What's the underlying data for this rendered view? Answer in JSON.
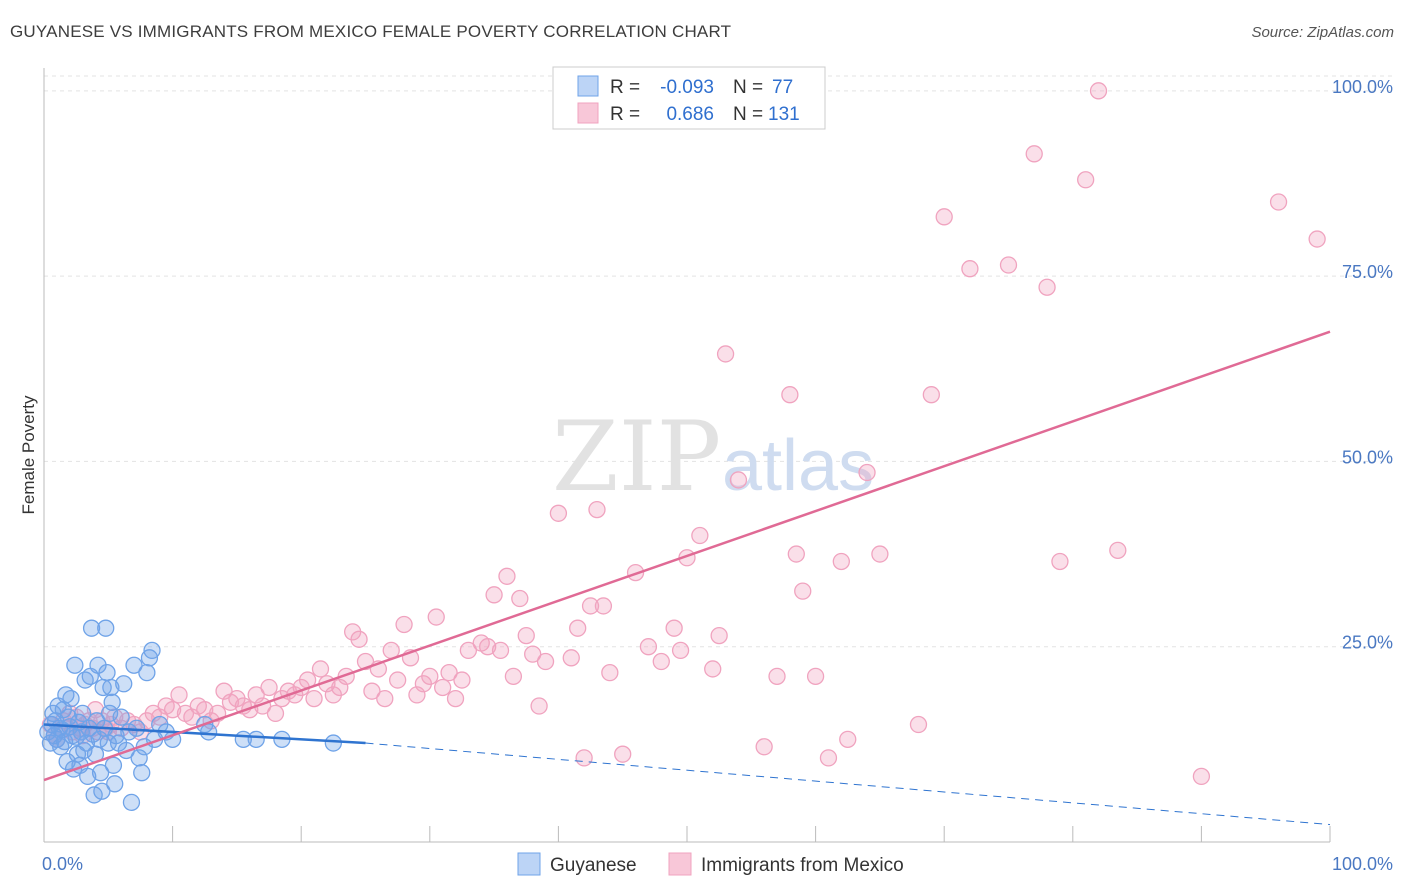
{
  "title": "GUYANESE VS IMMIGRANTS FROM MEXICO FEMALE POVERTY CORRELATION CHART",
  "source": "Source: ZipAtlas.com",
  "watermark": {
    "zip": "ZIP",
    "atlas": "atlas"
  },
  "chart_data": {
    "type": "scatter",
    "xlabel": "",
    "ylabel": "Female Poverty",
    "xlim": [
      0,
      100
    ],
    "ylim": [
      0,
      102
    ],
    "x_tick_labels": [
      {
        "value": 0,
        "label": "0.0%"
      },
      {
        "value": 100,
        "label": "100.0%"
      }
    ],
    "y_tick_labels": [
      {
        "value": 25,
        "label": "25.0%"
      },
      {
        "value": 50,
        "label": "50.0%"
      },
      {
        "value": 75,
        "label": "75.0%"
      },
      {
        "value": 100,
        "label": "100.0%"
      }
    ],
    "legend": {
      "placement": "top-center",
      "entries": [
        {
          "r_label": "R =",
          "r_value": "-0.093",
          "n_label": "N =",
          "n_value": "77"
        },
        {
          "r_label": "R =",
          "r_value": "0.686",
          "n_label": "N =",
          "n_value": "131"
        }
      ]
    },
    "bottom_legend": [
      "Guyanese",
      "Immigrants from Mexico"
    ],
    "series": [
      {
        "name": "Guyanese",
        "color": "#6fa3e8",
        "line_color": "#2f74d0",
        "trend": {
          "x0": 0,
          "y0": 14.5,
          "x1": 25,
          "y1": 12.0,
          "dash_to_x": 100,
          "dash_to_y": 1.0
        },
        "points": [
          [
            0.3,
            13.5
          ],
          [
            0.5,
            12.0
          ],
          [
            0.6,
            14.5
          ],
          [
            0.7,
            16.0
          ],
          [
            0.8,
            13.0
          ],
          [
            0.9,
            15.0
          ],
          [
            1.0,
            12.5
          ],
          [
            1.1,
            17.0
          ],
          [
            1.2,
            14.0
          ],
          [
            1.3,
            11.5
          ],
          [
            1.4,
            13.8
          ],
          [
            1.5,
            16.5
          ],
          [
            1.6,
            12.2
          ],
          [
            1.7,
            18.5
          ],
          [
            1.8,
            9.5
          ],
          [
            1.9,
            15.5
          ],
          [
            2.0,
            14.2
          ],
          [
            2.1,
            18.0
          ],
          [
            2.2,
            13.0
          ],
          [
            2.3,
            8.5
          ],
          [
            2.4,
            22.5
          ],
          [
            2.5,
            12.8
          ],
          [
            2.6,
            10.5
          ],
          [
            2.7,
            14.8
          ],
          [
            2.8,
            9.0
          ],
          [
            2.9,
            13.5
          ],
          [
            3.0,
            16.0
          ],
          [
            3.1,
            11.0
          ],
          [
            3.2,
            20.5
          ],
          [
            3.3,
            12.0
          ],
          [
            3.4,
            7.5
          ],
          [
            3.5,
            14.0
          ],
          [
            3.6,
            21.0
          ],
          [
            3.7,
            27.5
          ],
          [
            3.8,
            13.2
          ],
          [
            3.9,
            5.0
          ],
          [
            4.0,
            10.5
          ],
          [
            4.1,
            15.0
          ],
          [
            4.2,
            22.5
          ],
          [
            4.3,
            12.5
          ],
          [
            4.4,
            8.0
          ],
          [
            4.5,
            5.5
          ],
          [
            4.6,
            19.5
          ],
          [
            4.7,
            14.0
          ],
          [
            4.8,
            27.5
          ],
          [
            4.9,
            21.5
          ],
          [
            5.0,
            12.0
          ],
          [
            5.1,
            16.0
          ],
          [
            5.2,
            19.5
          ],
          [
            5.3,
            17.5
          ],
          [
            5.4,
            9.0
          ],
          [
            5.5,
            6.5
          ],
          [
            5.6,
            13.0
          ],
          [
            5.8,
            12.0
          ],
          [
            6.0,
            15.5
          ],
          [
            6.2,
            20.0
          ],
          [
            6.4,
            11.0
          ],
          [
            6.6,
            13.5
          ],
          [
            6.8,
            4.0
          ],
          [
            7.0,
            22.5
          ],
          [
            7.2,
            14.0
          ],
          [
            7.4,
            10.0
          ],
          [
            7.6,
            8.0
          ],
          [
            7.8,
            11.5
          ],
          [
            8.0,
            21.5
          ],
          [
            8.2,
            23.5
          ],
          [
            8.4,
            24.5
          ],
          [
            8.6,
            12.5
          ],
          [
            9.0,
            14.5
          ],
          [
            9.5,
            13.5
          ],
          [
            10.0,
            12.5
          ],
          [
            12.5,
            14.5
          ],
          [
            12.8,
            13.5
          ],
          [
            15.5,
            12.5
          ],
          [
            16.5,
            12.5
          ],
          [
            18.5,
            12.5
          ],
          [
            22.5,
            12.0
          ]
        ]
      },
      {
        "name": "Immigrants from Mexico",
        "color": "#f0a3bf",
        "line_color": "#e06a95",
        "trend": {
          "x0": 0,
          "y0": 7.0,
          "x1": 100,
          "y1": 67.5
        },
        "points": [
          [
            0.5,
            14.5
          ],
          [
            0.8,
            13.0
          ],
          [
            1.0,
            12.5
          ],
          [
            1.5,
            15.0
          ],
          [
            1.8,
            14.0
          ],
          [
            2.0,
            16.0
          ],
          [
            2.2,
            13.5
          ],
          [
            2.5,
            15.5
          ],
          [
            2.8,
            14.0
          ],
          [
            3.0,
            13.0
          ],
          [
            3.2,
            14.5
          ],
          [
            3.5,
            15.0
          ],
          [
            3.8,
            14.0
          ],
          [
            4.0,
            16.5
          ],
          [
            4.2,
            13.5
          ],
          [
            4.5,
            15.0
          ],
          [
            4.8,
            14.0
          ],
          [
            5.0,
            13.5
          ],
          [
            5.2,
            14.5
          ],
          [
            5.5,
            15.5
          ],
          [
            6.0,
            14.0
          ],
          [
            6.5,
            15.0
          ],
          [
            7.0,
            14.5
          ],
          [
            7.5,
            13.5
          ],
          [
            8.0,
            15.0
          ],
          [
            8.5,
            16.0
          ],
          [
            9.0,
            15.5
          ],
          [
            9.5,
            17.0
          ],
          [
            10.0,
            16.5
          ],
          [
            10.5,
            18.5
          ],
          [
            11.0,
            16.0
          ],
          [
            11.5,
            15.5
          ],
          [
            12.0,
            17.0
          ],
          [
            12.5,
            16.5
          ],
          [
            13.0,
            15.0
          ],
          [
            13.5,
            16.0
          ],
          [
            14.0,
            19.0
          ],
          [
            14.5,
            17.5
          ],
          [
            15.0,
            18.0
          ],
          [
            15.5,
            17.0
          ],
          [
            16.0,
            16.5
          ],
          [
            16.5,
            18.5
          ],
          [
            17.0,
            17.0
          ],
          [
            17.5,
            19.5
          ],
          [
            18.0,
            16.0
          ],
          [
            18.5,
            18.0
          ],
          [
            19.0,
            19.0
          ],
          [
            19.5,
            18.5
          ],
          [
            20.0,
            19.5
          ],
          [
            20.5,
            20.5
          ],
          [
            21.0,
            18.0
          ],
          [
            21.5,
            22.0
          ],
          [
            22.0,
            20.0
          ],
          [
            22.5,
            18.5
          ],
          [
            23.0,
            19.5
          ],
          [
            23.5,
            21.0
          ],
          [
            24.0,
            27.0
          ],
          [
            24.5,
            26.0
          ],
          [
            25.0,
            23.0
          ],
          [
            25.5,
            19.0
          ],
          [
            26.0,
            22.0
          ],
          [
            26.5,
            18.0
          ],
          [
            27.0,
            24.5
          ],
          [
            27.5,
            20.5
          ],
          [
            28.0,
            28.0
          ],
          [
            28.5,
            23.5
          ],
          [
            29.0,
            18.5
          ],
          [
            29.5,
            20.0
          ],
          [
            30.0,
            21.0
          ],
          [
            30.5,
            29.0
          ],
          [
            31.0,
            19.5
          ],
          [
            31.5,
            21.5
          ],
          [
            32.0,
            18.0
          ],
          [
            32.5,
            20.5
          ],
          [
            33.0,
            24.5
          ],
          [
            34.0,
            25.5
          ],
          [
            34.5,
            25.0
          ],
          [
            35.0,
            32.0
          ],
          [
            35.5,
            24.5
          ],
          [
            36.0,
            34.5
          ],
          [
            36.5,
            21.0
          ],
          [
            37.0,
            31.5
          ],
          [
            37.5,
            26.5
          ],
          [
            38.0,
            24.0
          ],
          [
            38.5,
            17.0
          ],
          [
            39.0,
            23.0
          ],
          [
            40.0,
            43.0
          ],
          [
            41.0,
            23.5
          ],
          [
            41.5,
            27.5
          ],
          [
            42.0,
            10.0
          ],
          [
            42.5,
            30.5
          ],
          [
            43.0,
            43.5
          ],
          [
            43.5,
            30.5
          ],
          [
            44.0,
            21.5
          ],
          [
            45.0,
            10.5
          ],
          [
            46.0,
            35.0
          ],
          [
            47.0,
            25.0
          ],
          [
            48.0,
            23.0
          ],
          [
            49.0,
            27.5
          ],
          [
            49.5,
            24.5
          ],
          [
            50.0,
            37.0
          ],
          [
            51.0,
            40.0
          ],
          [
            52.0,
            22.0
          ],
          [
            52.5,
            26.5
          ],
          [
            53.0,
            64.5
          ],
          [
            54.0,
            47.5
          ],
          [
            56.0,
            11.5
          ],
          [
            57.0,
            21.0
          ],
          [
            58.0,
            59.0
          ],
          [
            58.5,
            37.5
          ],
          [
            59.0,
            32.5
          ],
          [
            60.0,
            21.0
          ],
          [
            61.0,
            10.0
          ],
          [
            62.0,
            36.5
          ],
          [
            62.5,
            12.5
          ],
          [
            64.0,
            48.5
          ],
          [
            65.0,
            37.5
          ],
          [
            68.0,
            14.5
          ],
          [
            69.0,
            59.0
          ],
          [
            70.0,
            83.0
          ],
          [
            72.0,
            76.0
          ],
          [
            75.0,
            76.5
          ],
          [
            77.0,
            91.5
          ],
          [
            78.0,
            73.5
          ],
          [
            79.0,
            36.5
          ],
          [
            81.0,
            88.0
          ],
          [
            82.0,
            100.0
          ],
          [
            96.0,
            85.0
          ],
          [
            99.0,
            80.0
          ],
          [
            90.0,
            7.5
          ],
          [
            83.5,
            38.0
          ]
        ]
      }
    ]
  }
}
